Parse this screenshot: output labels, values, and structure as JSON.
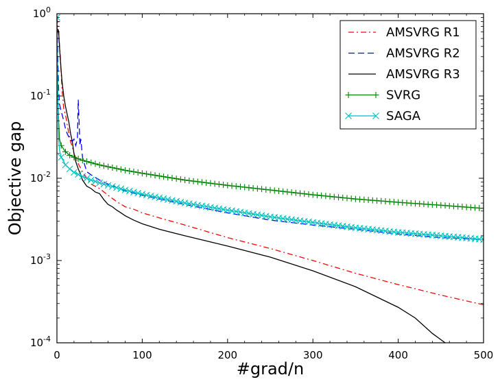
{
  "chart_data": {
    "type": "line",
    "title": "",
    "xlabel": "#grad/n",
    "ylabel": "Objective gap",
    "xlim": [
      0,
      500
    ],
    "ylim": [
      0.0001,
      1
    ],
    "yscale": "log",
    "grid": false,
    "legend_position": "top-right",
    "x_ticks": [
      {
        "value": 0,
        "label": "0"
      },
      {
        "value": 100,
        "label": "100"
      },
      {
        "value": 200,
        "label": "200"
      },
      {
        "value": 300,
        "label": "300"
      },
      {
        "value": 400,
        "label": "400"
      },
      {
        "value": 500,
        "label": "500"
      }
    ],
    "y_ticks": [
      {
        "value": 1,
        "base": "10",
        "exp": "0"
      },
      {
        "value": 0.1,
        "base": "10",
        "exp": "-1"
      },
      {
        "value": 0.01,
        "base": "10",
        "exp": "-2"
      },
      {
        "value": 0.001,
        "base": "10",
        "exp": "-3"
      },
      {
        "value": 0.0001,
        "base": "10",
        "exp": "-4"
      }
    ],
    "series": [
      {
        "name": "AMSVRG R1",
        "color": "#ff0000",
        "style": "dashdot",
        "marker": "none",
        "points": [
          [
            0,
            0.9
          ],
          [
            2,
            0.6
          ],
          [
            4,
            0.3
          ],
          [
            6,
            0.12
          ],
          [
            8,
            0.07
          ],
          [
            10,
            0.06
          ],
          [
            12,
            0.045
          ],
          [
            14,
            0.035
          ],
          [
            16,
            0.028
          ],
          [
            18,
            0.024
          ],
          [
            20,
            0.02
          ],
          [
            25,
            0.015
          ],
          [
            30,
            0.012
          ],
          [
            35,
            0.01
          ],
          [
            40,
            0.0085
          ],
          [
            50,
            0.0075
          ],
          [
            60,
            0.0062
          ],
          [
            70,
            0.0052
          ],
          [
            80,
            0.0045
          ],
          [
            90,
            0.0042
          ],
          [
            100,
            0.0038
          ],
          [
            120,
            0.0033
          ],
          [
            150,
            0.0027
          ],
          [
            200,
            0.0019
          ],
          [
            250,
            0.0014
          ],
          [
            300,
            0.001
          ],
          [
            350,
            0.0007
          ],
          [
            400,
            0.00051
          ],
          [
            450,
            0.00038
          ],
          [
            500,
            0.00029
          ]
        ]
      },
      {
        "name": "AMSVRG R2",
        "color": "#0000ff",
        "style": "dashed",
        "marker": "none",
        "points": [
          [
            0,
            0.9
          ],
          [
            1,
            0.3
          ],
          [
            2,
            0.12
          ],
          [
            3,
            0.08
          ],
          [
            5,
            0.065
          ],
          [
            8,
            0.05
          ],
          [
            10,
            0.04
          ],
          [
            12,
            0.035
          ],
          [
            15,
            0.03
          ],
          [
            18,
            0.028
          ],
          [
            20,
            0.03
          ],
          [
            22,
            0.025
          ],
          [
            24,
            0.03
          ],
          [
            25,
            0.09
          ],
          [
            27,
            0.025
          ],
          [
            28,
            0.03
          ],
          [
            30,
            0.018
          ],
          [
            33,
            0.014
          ],
          [
            35,
            0.012
          ],
          [
            40,
            0.011
          ],
          [
            50,
            0.0095
          ],
          [
            60,
            0.0085
          ],
          [
            80,
            0.007
          ],
          [
            100,
            0.0062
          ],
          [
            150,
            0.0048
          ],
          [
            200,
            0.0038
          ],
          [
            250,
            0.0031
          ],
          [
            300,
            0.0027
          ],
          [
            350,
            0.0024
          ],
          [
            400,
            0.0021
          ],
          [
            450,
            0.0019
          ],
          [
            500,
            0.0018
          ]
        ]
      },
      {
        "name": "AMSVRG R3",
        "color": "#000000",
        "style": "solid",
        "marker": "none",
        "points": [
          [
            0,
            0.5
          ],
          [
            1,
            0.65
          ],
          [
            2,
            0.6
          ],
          [
            3,
            0.4
          ],
          [
            4,
            0.28
          ],
          [
            5,
            0.2
          ],
          [
            6,
            0.15
          ],
          [
            8,
            0.1
          ],
          [
            10,
            0.075
          ],
          [
            12,
            0.06
          ],
          [
            14,
            0.048
          ],
          [
            16,
            0.035
          ],
          [
            18,
            0.028
          ],
          [
            20,
            0.02
          ],
          [
            22,
            0.016
          ],
          [
            25,
            0.013
          ],
          [
            28,
            0.011
          ],
          [
            30,
            0.0095
          ],
          [
            35,
            0.008
          ],
          [
            40,
            0.0075
          ],
          [
            45,
            0.0068
          ],
          [
            50,
            0.0065
          ],
          [
            55,
            0.0055
          ],
          [
            60,
            0.0048
          ],
          [
            65,
            0.0045
          ],
          [
            70,
            0.0041
          ],
          [
            75,
            0.0038
          ],
          [
            80,
            0.0035
          ],
          [
            90,
            0.0031
          ],
          [
            100,
            0.0028
          ],
          [
            120,
            0.0024
          ],
          [
            150,
            0.002
          ],
          [
            200,
            0.0015
          ],
          [
            250,
            0.0011
          ],
          [
            300,
            0.00075
          ],
          [
            350,
            0.00048
          ],
          [
            400,
            0.00027
          ],
          [
            420,
            0.0002
          ],
          [
            440,
            0.00013
          ],
          [
            455,
            0.0001
          ]
        ]
      },
      {
        "name": "SVRG",
        "color": "#008000",
        "style": "solid",
        "marker": "plus",
        "points": [
          [
            0,
            0.8
          ],
          [
            1,
            0.1
          ],
          [
            2,
            0.05
          ],
          [
            3,
            0.03
          ],
          [
            5,
            0.025
          ],
          [
            10,
            0.021
          ],
          [
            15,
            0.019
          ],
          [
            20,
            0.018
          ],
          [
            30,
            0.0165
          ],
          [
            40,
            0.0155
          ],
          [
            50,
            0.0145
          ],
          [
            60,
            0.0138
          ],
          [
            80,
            0.0125
          ],
          [
            100,
            0.0115
          ],
          [
            150,
            0.0095
          ],
          [
            200,
            0.0082
          ],
          [
            250,
            0.0072
          ],
          [
            300,
            0.0063
          ],
          [
            350,
            0.0056
          ],
          [
            400,
            0.0051
          ],
          [
            450,
            0.0047
          ],
          [
            500,
            0.0043
          ]
        ]
      },
      {
        "name": "SAGA",
        "color": "#00bfbf",
        "style": "solid",
        "marker": "x",
        "points": [
          [
            0,
            0.9
          ],
          [
            1,
            0.1
          ],
          [
            2,
            0.03
          ],
          [
            3,
            0.022
          ],
          [
            5,
            0.018
          ],
          [
            8,
            0.016
          ],
          [
            10,
            0.0145
          ],
          [
            15,
            0.013
          ],
          [
            20,
            0.0118
          ],
          [
            30,
            0.0105
          ],
          [
            40,
            0.0095
          ],
          [
            50,
            0.0088
          ],
          [
            60,
            0.0082
          ],
          [
            80,
            0.0072
          ],
          [
            100,
            0.0064
          ],
          [
            150,
            0.005
          ],
          [
            200,
            0.0041
          ],
          [
            250,
            0.0034
          ],
          [
            300,
            0.0029
          ],
          [
            350,
            0.0025
          ],
          [
            400,
            0.0022
          ],
          [
            450,
            0.002
          ],
          [
            500,
            0.0018
          ]
        ]
      }
    ]
  }
}
